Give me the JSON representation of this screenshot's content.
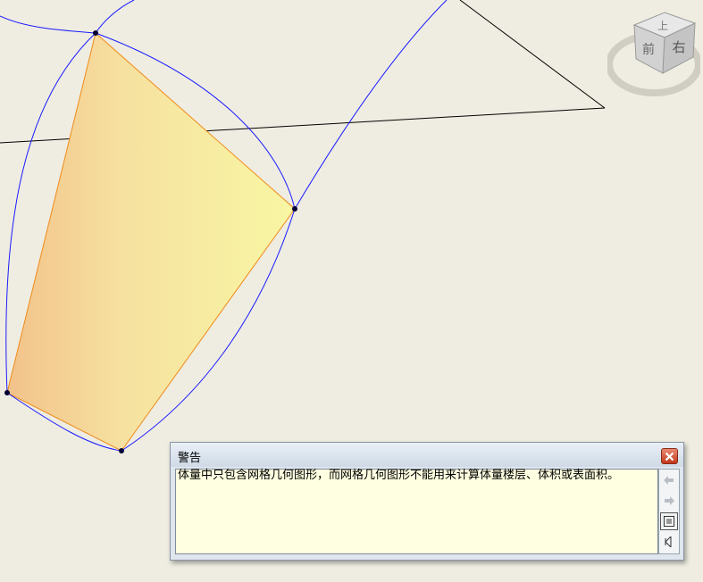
{
  "viewcube": {
    "faces": {
      "top": "上",
      "front": "前",
      "right": "右"
    }
  },
  "dialog": {
    "title": "警告",
    "message": "体量中只包含网格几何图形，而网格几何图形不能用来计算体量楼层、体积或表面积。",
    "icons": {
      "close": "close-icon",
      "previous": "arrow-left-icon",
      "next": "arrow-right-icon",
      "details": "details-icon",
      "collapse": "collapse-icon"
    }
  },
  "colors": {
    "background": "#efede1",
    "curve": "#1a1aff",
    "mesh_fill_left": "#f2c78c",
    "mesh_fill_right": "#f7f3a4",
    "mesh_edge": "#f08a1a",
    "reference_line": "#000000",
    "dialog_close": "#c2391d"
  }
}
